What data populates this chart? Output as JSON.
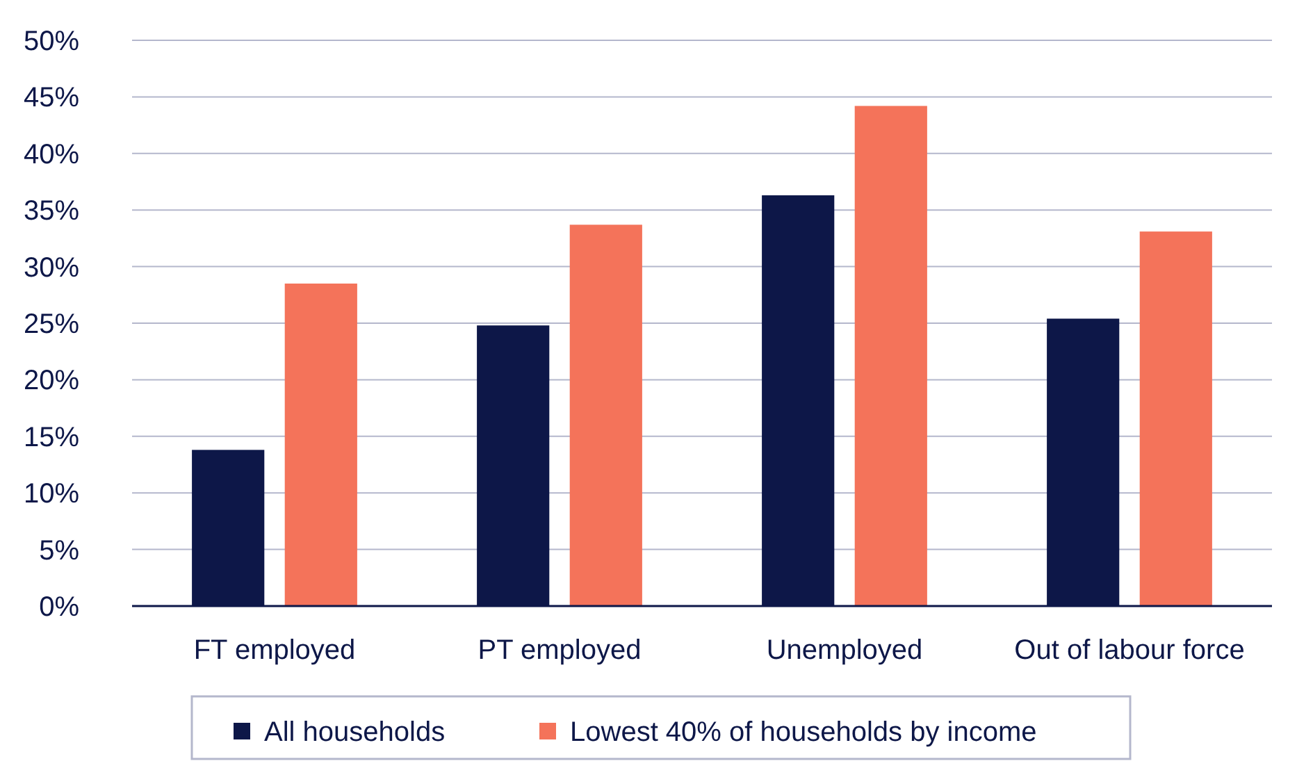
{
  "chart_data": {
    "type": "bar",
    "categories": [
      "FT employed",
      "PT employed",
      "Unemployed",
      "Out of labour force"
    ],
    "series": [
      {
        "name": "All households",
        "color": "#0d1748",
        "values": [
          13.8,
          24.8,
          36.3,
          25.4
        ]
      },
      {
        "name": "Lowest 40% of households by income",
        "color": "#f4735a",
        "values": [
          28.5,
          33.7,
          44.2,
          33.1
        ]
      }
    ],
    "ylim": [
      0,
      50
    ],
    "yticks": [
      {
        "value": 0,
        "label": "0%"
      },
      {
        "value": 5,
        "label": "5%"
      },
      {
        "value": 10,
        "label": "10%"
      },
      {
        "value": 15,
        "label": "15%"
      },
      {
        "value": 20,
        "label": "20%"
      },
      {
        "value": 25,
        "label": "25%"
      },
      {
        "value": 30,
        "label": "30%"
      },
      {
        "value": 35,
        "label": "35%"
      },
      {
        "value": 40,
        "label": "40%"
      },
      {
        "value": 45,
        "label": "45%"
      },
      {
        "value": 50,
        "label": "50%"
      }
    ],
    "grid": "y",
    "legend": "bottom"
  }
}
